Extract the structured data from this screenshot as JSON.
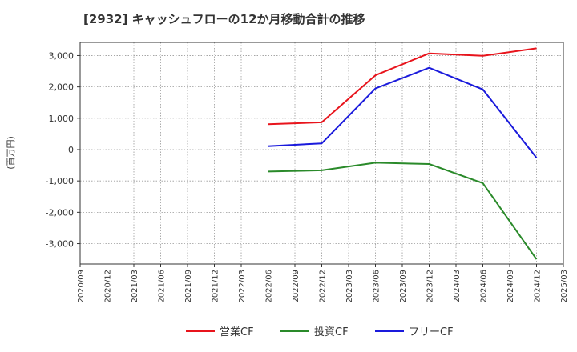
{
  "chart_data": {
    "type": "line",
    "title": "[2932]  キャッシュフローの12か月移動合計の推移",
    "ylabel": "(百万円)",
    "xlabel": "",
    "ylim": [
      -3650,
      3420
    ],
    "yticks": [
      3000,
      2000,
      1000,
      0,
      -1000,
      -2000,
      -3000
    ],
    "ytick_labels": [
      "3,000",
      "2,000",
      "1,000",
      "0",
      "-1,000",
      "-2,000",
      "-3,000"
    ],
    "categories": [
      "2020/09",
      "2020/12",
      "2021/03",
      "2021/06",
      "2021/09",
      "2021/12",
      "2022/03",
      "2022/06",
      "2022/09",
      "2022/12",
      "2023/03",
      "2023/06",
      "2023/09",
      "2023/12",
      "2024/03",
      "2024/06",
      "2024/09",
      "2024/12",
      "2025/03"
    ],
    "grid": true,
    "legend_position": "bottom",
    "series": [
      {
        "name": "営業CF",
        "color": "#e8141c",
        "points": [
          [
            "2022/06",
            810
          ],
          [
            "2022/12",
            870
          ],
          [
            "2023/06",
            2370
          ],
          [
            "2023/12",
            3070
          ],
          [
            "2024/06",
            2990
          ],
          [
            "2024/12",
            3230
          ]
        ]
      },
      {
        "name": "投資CF",
        "color": "#2a8a2a",
        "points": [
          [
            "2022/06",
            -700
          ],
          [
            "2022/12",
            -660
          ],
          [
            "2023/06",
            -420
          ],
          [
            "2023/12",
            -460
          ],
          [
            "2024/06",
            -1070
          ],
          [
            "2024/12",
            -3500
          ]
        ]
      },
      {
        "name": "フリーCF",
        "color": "#1a1adc",
        "points": [
          [
            "2022/06",
            110
          ],
          [
            "2022/12",
            200
          ],
          [
            "2023/06",
            1950
          ],
          [
            "2023/12",
            2610
          ],
          [
            "2024/06",
            1920
          ],
          [
            "2024/12",
            -260
          ]
        ]
      }
    ]
  }
}
